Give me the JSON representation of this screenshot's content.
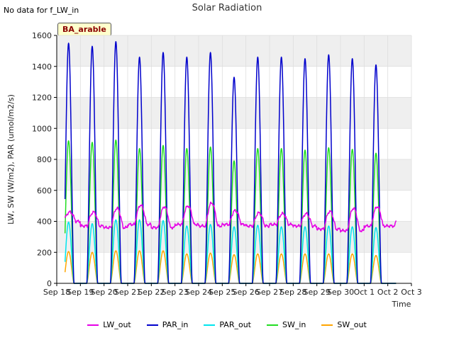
{
  "header": {
    "title": "Solar Radiation",
    "no_data_note": "No data for f_LW_in",
    "badge": "BA_arable"
  },
  "colors": {
    "LW_out": "#e600e6",
    "PAR_in": "#0000cc",
    "PAR_out": "#00e5ee",
    "SW_in": "#22dd22",
    "SW_out": "#ffa500",
    "band": "#efefef",
    "grid": "#dddddd"
  },
  "chart_data": {
    "type": "line",
    "title": "Solar Radiation",
    "xlabel": "Time",
    "ylabel": "LW, SW (W/m2), PAR (umol/m2/s)",
    "ylim": [
      0,
      1600
    ],
    "yticks": [
      0,
      200,
      400,
      600,
      800,
      1000,
      1200,
      1400,
      1600
    ],
    "xlim": [
      0,
      15
    ],
    "xtick_labels": [
      "Sep 18",
      "Sep 19",
      "Sep 20",
      "Sep 21",
      "Sep 22",
      "Sep 23",
      "Sep 24",
      "Sep 25",
      "Sep 26",
      "Sep 27",
      "Sep 28",
      "Sep 29",
      "Sep 30",
      "Oct 1",
      "Oct 2",
      "Oct 3"
    ],
    "grid": true,
    "legend_position": "bottom",
    "series_daily_peaks": {
      "PAR_in": [
        1550,
        1530,
        1560,
        1460,
        1490,
        1460,
        1490,
        1330,
        1460,
        1460,
        1450,
        1475,
        1450,
        1410
      ],
      "SW_in": [
        920,
        910,
        925,
        870,
        890,
        870,
        880,
        790,
        870,
        870,
        860,
        875,
        865,
        840
      ],
      "PAR_out": [
        395,
        385,
        410,
        410,
        405,
        370,
        380,
        365,
        375,
        365,
        365,
        370,
        365,
        360
      ],
      "SW_out": [
        205,
        200,
        210,
        210,
        210,
        190,
        195,
        185,
        190,
        190,
        190,
        190,
        190,
        180
      ],
      "LW_out_day": [
        460,
        460,
        485,
        505,
        495,
        500,
        520,
        470,
        455,
        450,
        450,
        465,
        485,
        495
      ],
      "LW_out_night": [
        400,
        370,
        360,
        380,
        360,
        380,
        370,
        380,
        370,
        380,
        370,
        350,
        340,
        370
      ]
    },
    "data_start_day": 0.35,
    "data_end_day": 14.35,
    "peak_time_of_day": 0.5,
    "series": [
      {
        "name": "LW_out"
      },
      {
        "name": "PAR_in"
      },
      {
        "name": "PAR_out"
      },
      {
        "name": "SW_in"
      },
      {
        "name": "SW_out"
      }
    ]
  }
}
